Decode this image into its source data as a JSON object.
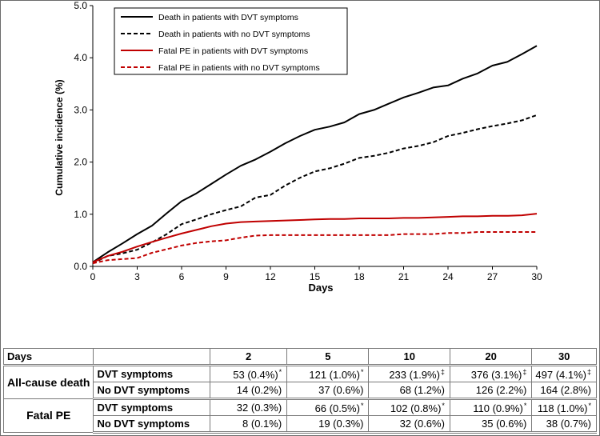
{
  "chart_data": {
    "type": "line",
    "title": "",
    "xlabel": "Days",
    "ylabel": "Cumulative incidence (%)",
    "xlim": [
      0,
      30
    ],
    "ylim": [
      0,
      5
    ],
    "xticks": [
      0,
      3,
      6,
      9,
      12,
      15,
      18,
      21,
      24,
      27,
      30
    ],
    "yticks": [
      0,
      1,
      2,
      3,
      4,
      5
    ],
    "ytick_labels": [
      "0.0",
      "1.0",
      "2.0",
      "3.0",
      "4.0",
      "5.0"
    ],
    "legend_position": "top-center",
    "x": [
      0,
      1,
      2,
      3,
      4,
      5,
      6,
      7,
      8,
      9,
      10,
      11,
      12,
      13,
      14,
      15,
      16,
      17,
      18,
      19,
      20,
      21,
      22,
      23,
      24,
      25,
      26,
      27,
      28,
      29,
      30
    ],
    "series": [
      {
        "name": "Death in patients with DVT symptoms",
        "color": "#000000",
        "dash": "solid",
        "values": [
          0.08,
          0.27,
          0.44,
          0.62,
          0.78,
          1.02,
          1.25,
          1.4,
          1.58,
          1.76,
          1.93,
          2.05,
          2.2,
          2.36,
          2.5,
          2.62,
          2.68,
          2.76,
          2.92,
          3.0,
          3.12,
          3.24,
          3.33,
          3.43,
          3.47,
          3.6,
          3.7,
          3.85,
          3.92,
          4.07,
          4.23
        ]
      },
      {
        "name": "Death in patients with no DVT symptoms",
        "color": "#000000",
        "dash": "dashed",
        "values": [
          0.06,
          0.2,
          0.25,
          0.32,
          0.46,
          0.62,
          0.81,
          0.9,
          1.0,
          1.08,
          1.15,
          1.32,
          1.37,
          1.55,
          1.7,
          1.82,
          1.88,
          1.97,
          2.08,
          2.12,
          2.18,
          2.26,
          2.31,
          2.38,
          2.5,
          2.56,
          2.63,
          2.69,
          2.74,
          2.8,
          2.9
        ]
      },
      {
        "name": "Fatal PE in patients with DVT symptoms",
        "color": "#c00000",
        "dash": "solid",
        "values": [
          0.08,
          0.2,
          0.28,
          0.38,
          0.47,
          0.55,
          0.63,
          0.7,
          0.77,
          0.82,
          0.85,
          0.86,
          0.87,
          0.88,
          0.89,
          0.9,
          0.91,
          0.91,
          0.92,
          0.92,
          0.92,
          0.93,
          0.93,
          0.94,
          0.95,
          0.96,
          0.96,
          0.97,
          0.97,
          0.98,
          1.01
        ]
      },
      {
        "name": "Fatal PE in patients with no DVT symptoms",
        "color": "#c00000",
        "dash": "dashed",
        "values": [
          0.06,
          0.12,
          0.14,
          0.16,
          0.26,
          0.33,
          0.4,
          0.45,
          0.48,
          0.5,
          0.55,
          0.59,
          0.6,
          0.6,
          0.6,
          0.6,
          0.6,
          0.6,
          0.6,
          0.6,
          0.6,
          0.62,
          0.62,
          0.62,
          0.64,
          0.64,
          0.66,
          0.66,
          0.66,
          0.66,
          0.66
        ]
      }
    ]
  },
  "table": {
    "header": {
      "label": "Days",
      "days": [
        "2",
        "5",
        "10",
        "20",
        "30"
      ]
    },
    "groups": [
      {
        "label": "All-cause death",
        "rows": [
          {
            "label": "DVT symptoms",
            "cells": [
              {
                "value": "53 (0.4%)",
                "mark": "*"
              },
              {
                "value": "121 (1.0%)",
                "mark": "*"
              },
              {
                "value": "233 (1.9%)",
                "mark": "‡"
              },
              {
                "value": "376 (3.1%)",
                "mark": "‡"
              },
              {
                "value": "497 (4.1%)",
                "mark": "‡"
              }
            ]
          },
          {
            "label": "No DVT symptoms",
            "cells": [
              {
                "value": "14 (0.2%)",
                "mark": ""
              },
              {
                "value": "37 (0.6%)",
                "mark": ""
              },
              {
                "value": "68 (1.2%)",
                "mark": ""
              },
              {
                "value": "126 (2.2%)",
                "mark": ""
              },
              {
                "value": "164 (2.8%)",
                "mark": ""
              }
            ]
          }
        ]
      },
      {
        "label": "Fatal PE",
        "rows": [
          {
            "label": "DVT symptoms",
            "cells": [
              {
                "value": "32 (0.3%)",
                "mark": ""
              },
              {
                "value": "66 (0.5%)",
                "mark": "*"
              },
              {
                "value": "102 (0.8%)",
                "mark": "*"
              },
              {
                "value": "110 (0.9%)",
                "mark": "*"
              },
              {
                "value": "118 (1.0%)",
                "mark": "*"
              }
            ]
          },
          {
            "label": "No DVT symptoms",
            "cells": [
              {
                "value": "8 (0.1%)",
                "mark": ""
              },
              {
                "value": "19 (0.3%)",
                "mark": ""
              },
              {
                "value": "32 (0.6%)",
                "mark": ""
              },
              {
                "value": "35 (0.6%)",
                "mark": ""
              },
              {
                "value": "38 (0.7%)",
                "mark": ""
              }
            ]
          }
        ]
      }
    ]
  }
}
